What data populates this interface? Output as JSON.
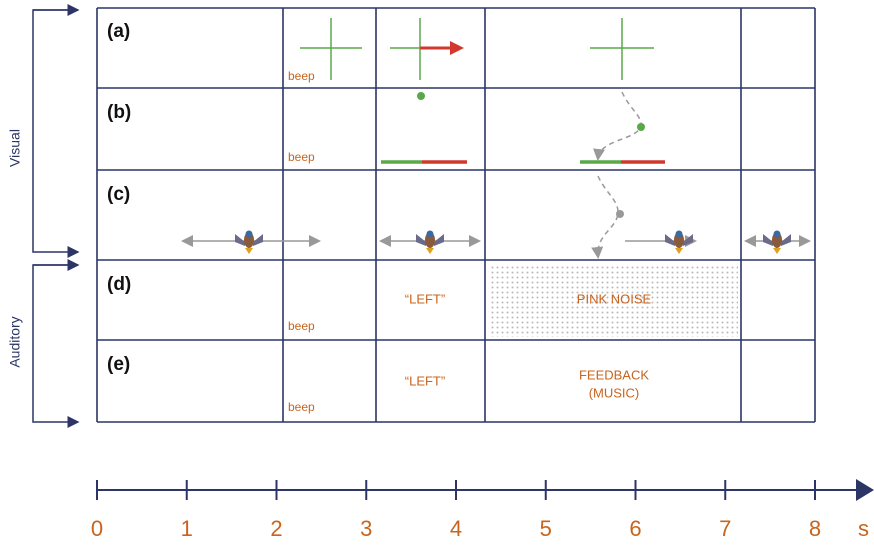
{
  "groups": {
    "visual": "Visual",
    "auditory": "Auditory"
  },
  "rows": [
    {
      "label": "(a)",
      "beep": "beep"
    },
    {
      "label": "(b)",
      "beep": "beep"
    },
    {
      "label": "(c)"
    },
    {
      "label": "(d)",
      "beep": "beep",
      "cue": "“LEFT”",
      "response": "PINK NOISE"
    },
    {
      "label": "(e)",
      "beep": "beep",
      "cue": "“LEFT”",
      "response": [
        "FEEDBACK",
        "(MUSIC)"
      ]
    }
  ],
  "time_axis": {
    "ticks": [
      0,
      1,
      2,
      3,
      4,
      5,
      6,
      7,
      8
    ],
    "unit": "s"
  }
}
